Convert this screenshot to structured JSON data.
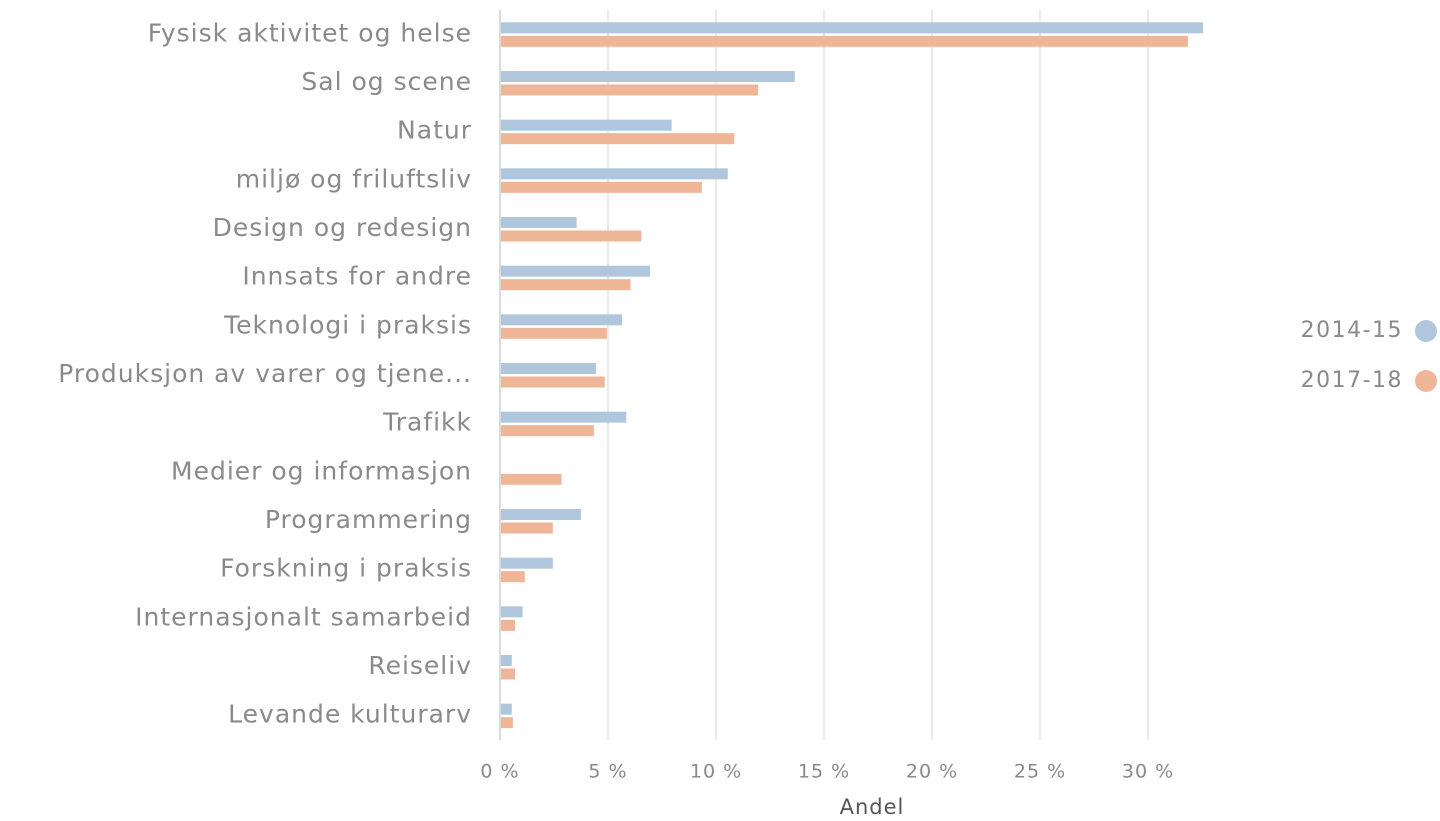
{
  "chart_data": {
    "type": "hbar",
    "x_label": "Andel",
    "categories": [
      "Fysisk aktivitet og helse",
      "Sal og scene",
      "Natur",
      "miljø og friluftsliv",
      "Design og redesign",
      "Innsats for andre",
      "Teknologi i praksis",
      "Produksjon av varer og tjene...",
      "Trafikk",
      "Medier og informasjon",
      "Programmering",
      "Forskning i praksis",
      "Internasjonalt samarbeid",
      "Reiseliv",
      "Levande kulturarv"
    ],
    "series": [
      {
        "name": "2014-15",
        "color": "#b0c6dd",
        "values": [
          32.5,
          13.6,
          7.9,
          10.5,
          3.5,
          6.9,
          5.6,
          4.4,
          5.8,
          null,
          3.7,
          2.4,
          1.0,
          0.5,
          0.5
        ]
      },
      {
        "name": "2017-18",
        "color": "#efb597",
        "values": [
          31.8,
          11.9,
          10.8,
          9.3,
          6.5,
          6.0,
          4.9,
          4.8,
          4.3,
          2.8,
          2.4,
          1.1,
          0.65,
          0.65,
          0.55
        ]
      }
    ],
    "xlim": [
      0,
      33
    ],
    "xticks": [
      {
        "value": 0,
        "label": "0 %"
      },
      {
        "value": 5,
        "label": "5 %"
      },
      {
        "value": 10,
        "label": "10 %"
      },
      {
        "value": 15,
        "label": "15 %"
      },
      {
        "value": 20,
        "label": "20 %"
      },
      {
        "value": 25,
        "label": "25 %"
      },
      {
        "value": 30,
        "label": "30 %"
      }
    ],
    "grid": true,
    "legend": "right"
  }
}
